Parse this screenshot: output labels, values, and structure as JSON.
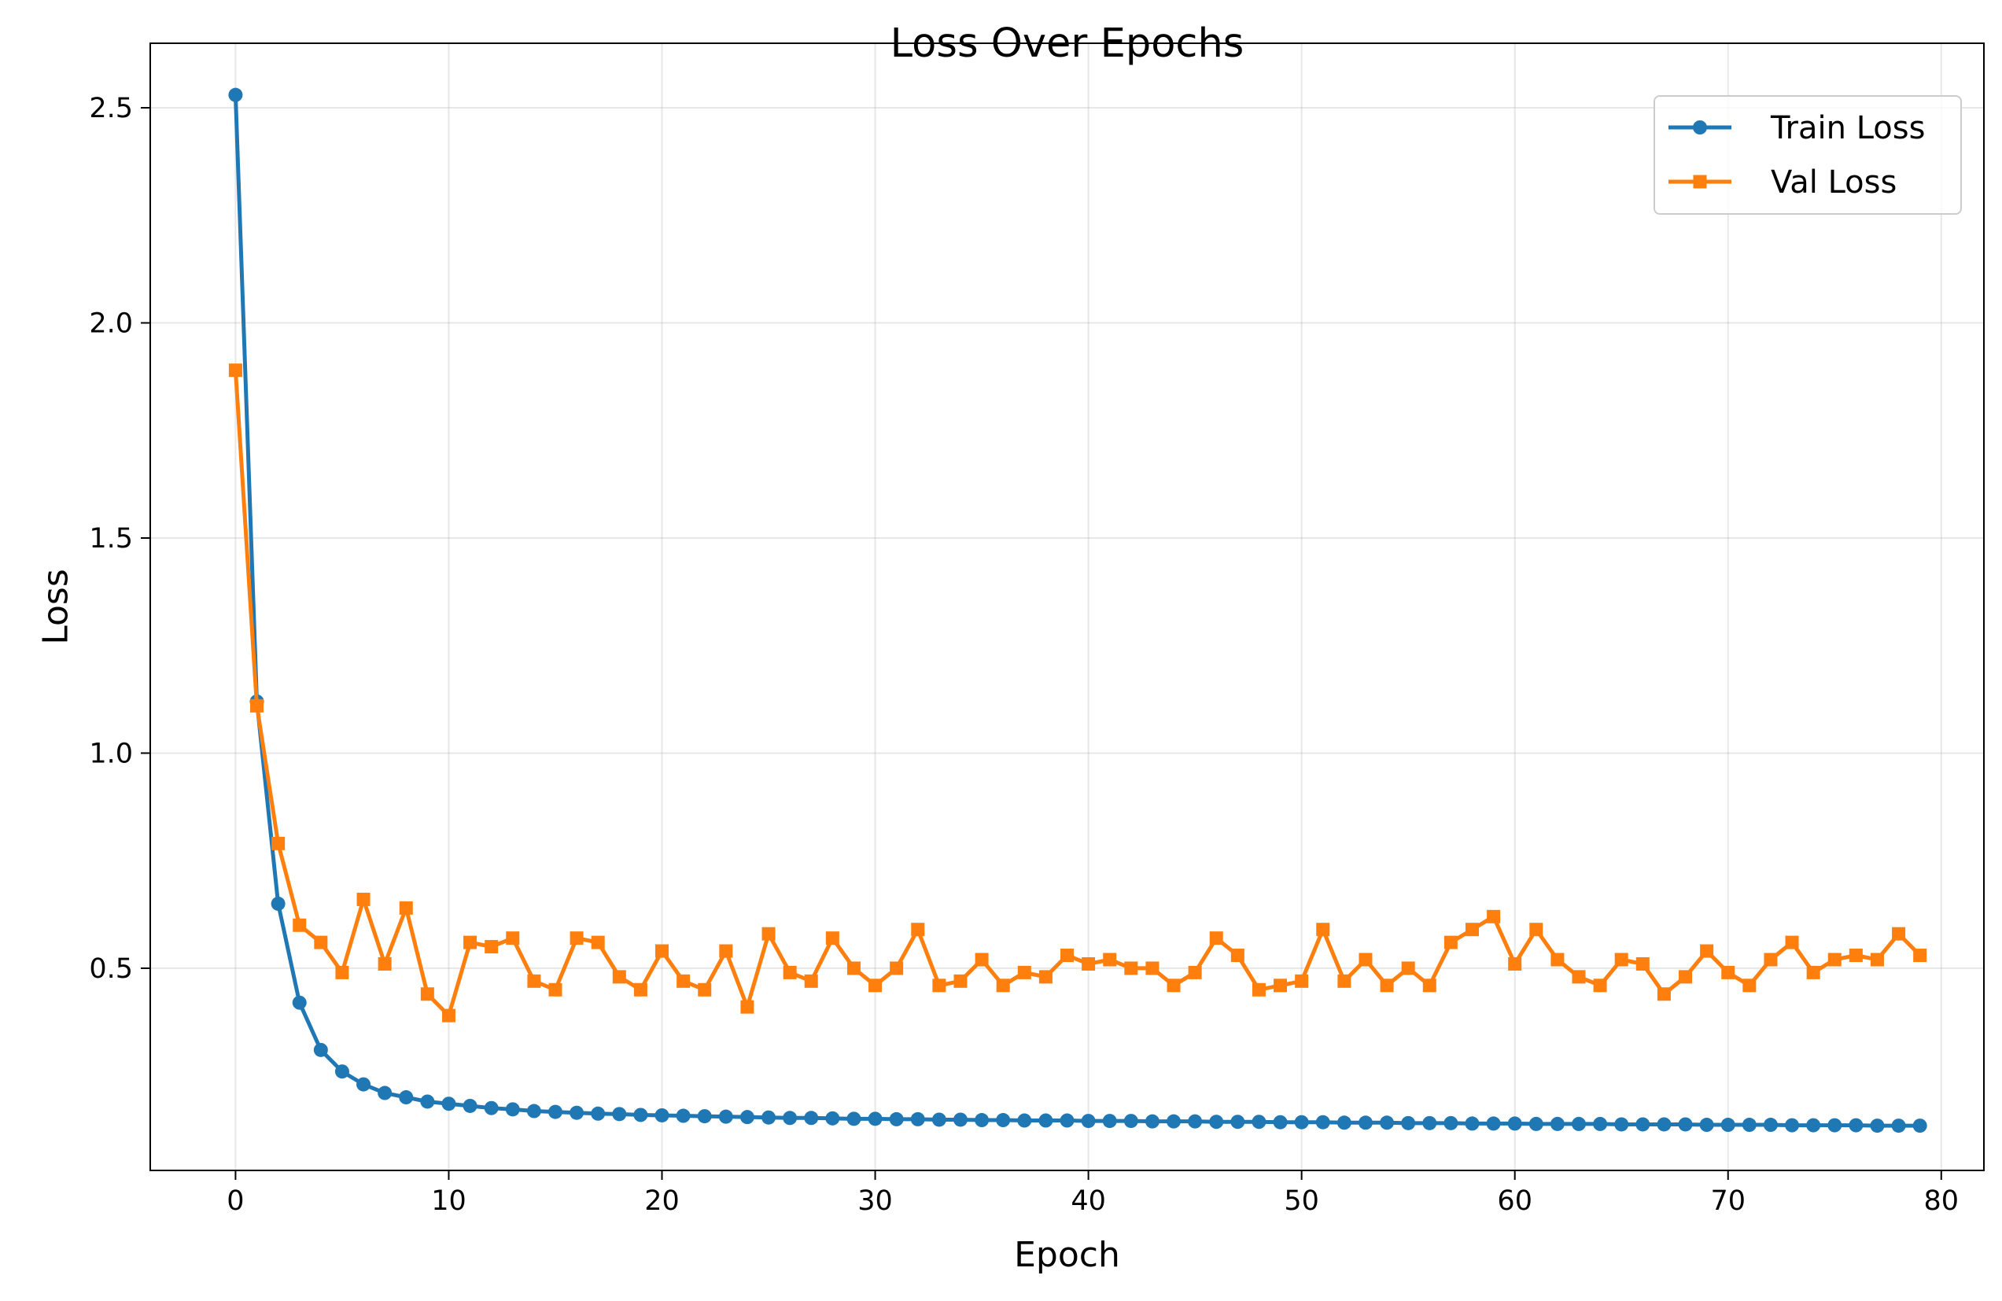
{
  "chart_data": {
    "type": "line",
    "title": "Loss Over Epochs",
    "xlabel": "Epoch",
    "ylabel": "Loss",
    "xlim": [
      -4,
      82
    ],
    "ylim": [
      0.03,
      2.65
    ],
    "xticks": [
      0,
      10,
      20,
      30,
      40,
      50,
      60,
      70,
      80
    ],
    "xtick_labels": [
      "0",
      "10",
      "20",
      "30",
      "40",
      "50",
      "60",
      "70",
      "80"
    ],
    "yticks": [
      0.5,
      1.0,
      1.5,
      2.0,
      2.5
    ],
    "ytick_labels": [
      "0.5",
      "1.0",
      "1.5",
      "2.0",
      "2.5"
    ],
    "grid": true,
    "legend_position": "top-right",
    "x": [
      0,
      1,
      2,
      3,
      4,
      5,
      6,
      7,
      8,
      9,
      10,
      11,
      12,
      13,
      14,
      15,
      16,
      17,
      18,
      19,
      20,
      21,
      22,
      23,
      24,
      25,
      26,
      27,
      28,
      29,
      30,
      31,
      32,
      33,
      34,
      35,
      36,
      37,
      38,
      39,
      40,
      41,
      42,
      43,
      44,
      45,
      46,
      47,
      48,
      49,
      50,
      51,
      52,
      53,
      54,
      55,
      56,
      57,
      58,
      59,
      60,
      61,
      62,
      63,
      64,
      65,
      66,
      67,
      68,
      69,
      70,
      71,
      72,
      73,
      74,
      75,
      76,
      77,
      78,
      79
    ],
    "series": [
      {
        "name": "Train Loss",
        "color": "#1f77b4",
        "marker": "circle",
        "values": [
          2.53,
          1.12,
          0.65,
          0.42,
          0.31,
          0.26,
          0.23,
          0.21,
          0.2,
          0.19,
          0.185,
          0.18,
          0.175,
          0.172,
          0.168,
          0.166,
          0.164,
          0.162,
          0.161,
          0.159,
          0.158,
          0.157,
          0.156,
          0.155,
          0.154,
          0.153,
          0.152,
          0.152,
          0.151,
          0.15,
          0.15,
          0.149,
          0.149,
          0.148,
          0.148,
          0.147,
          0.147,
          0.146,
          0.146,
          0.146,
          0.145,
          0.145,
          0.145,
          0.144,
          0.144,
          0.144,
          0.143,
          0.143,
          0.143,
          0.142,
          0.142,
          0.142,
          0.141,
          0.141,
          0.141,
          0.14,
          0.14,
          0.14,
          0.139,
          0.139,
          0.139,
          0.138,
          0.138,
          0.138,
          0.138,
          0.137,
          0.137,
          0.137,
          0.137,
          0.136,
          0.136,
          0.136,
          0.136,
          0.135,
          0.135,
          0.135,
          0.135,
          0.134,
          0.134,
          0.134
        ]
      },
      {
        "name": "Val Loss",
        "color": "#ff7f0e",
        "marker": "square",
        "values": [
          1.89,
          1.11,
          0.79,
          0.6,
          0.56,
          0.49,
          0.66,
          0.51,
          0.64,
          0.44,
          0.39,
          0.56,
          0.55,
          0.57,
          0.47,
          0.45,
          0.57,
          0.56,
          0.48,
          0.45,
          0.54,
          0.47,
          0.45,
          0.54,
          0.41,
          0.58,
          0.49,
          0.47,
          0.57,
          0.5,
          0.46,
          0.5,
          0.59,
          0.46,
          0.47,
          0.52,
          0.46,
          0.49,
          0.48,
          0.53,
          0.51,
          0.52,
          0.5,
          0.5,
          0.46,
          0.49,
          0.57,
          0.53,
          0.45,
          0.46,
          0.47,
          0.59,
          0.47,
          0.52,
          0.46,
          0.5,
          0.46,
          0.56,
          0.59,
          0.62,
          0.51,
          0.59,
          0.52,
          0.48,
          0.46,
          0.52,
          0.51,
          0.44,
          0.48,
          0.54,
          0.49,
          0.46,
          0.52,
          0.56,
          0.49,
          0.52,
          0.53,
          0.52,
          0.58,
          0.53
        ]
      }
    ]
  }
}
